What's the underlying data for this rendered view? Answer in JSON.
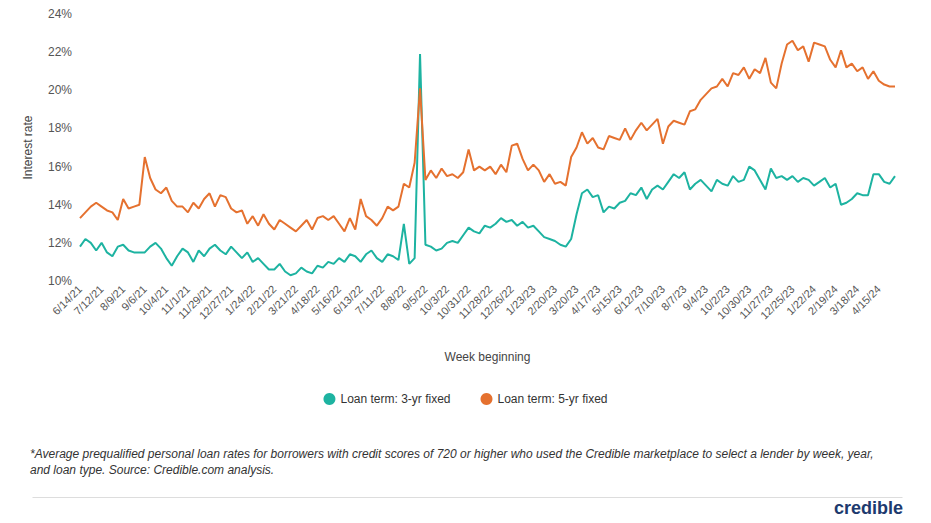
{
  "chart_data": {
    "type": "line",
    "x_label": "Week beginning",
    "y_label": "Interest rate",
    "note": "*Average prequalified personal loan rates for borrowers with credit scores of 720 or higher who used the Credible marketplace to select a lender by week, year, and loan type. Source: Credible.com analysis.",
    "logo": "credible",
    "categories": [
      "6/14/21",
      null,
      null,
      null,
      "7/12/21",
      null,
      null,
      null,
      "8/9/21",
      null,
      null,
      null,
      "9/6/21",
      null,
      null,
      null,
      "10/4/21",
      null,
      null,
      null,
      "11/1/21",
      null,
      null,
      null,
      "11/29/21",
      null,
      null,
      null,
      "12/27/21",
      null,
      null,
      null,
      "1/24/22",
      null,
      null,
      null,
      "2/21/22",
      null,
      null,
      null,
      "3/21/22",
      null,
      null,
      null,
      "4/18/22",
      null,
      null,
      null,
      "5/16/22",
      null,
      null,
      null,
      "6/13/22",
      null,
      null,
      null,
      "7/11/22",
      null,
      null,
      null,
      "8/8/22",
      null,
      null,
      null,
      "9/5/22",
      null,
      null,
      null,
      "10/3/22",
      null,
      null,
      null,
      "10/31/22",
      null,
      null,
      null,
      "11/28/22",
      null,
      null,
      null,
      "12/26/22",
      null,
      null,
      null,
      "1/23/23",
      null,
      null,
      null,
      "2/20/23",
      null,
      null,
      null,
      "3/20/23",
      null,
      null,
      null,
      "4/17/23",
      null,
      null,
      null,
      "5/15/23",
      null,
      null,
      null,
      "6/12/23",
      null,
      null,
      null,
      "7/10/23",
      null,
      null,
      null,
      "8/7/23",
      null,
      null,
      null,
      "9/4/23",
      null,
      null,
      null,
      "10/2/23",
      null,
      null,
      null,
      "10/30/23",
      null,
      null,
      null,
      "11/27/23",
      null,
      null,
      null,
      "12/25/23",
      null,
      null,
      null,
      "1/22/24",
      null,
      null,
      null,
      "2/19/24",
      null,
      null,
      null,
      "3/18/24",
      null,
      null,
      null,
      "4/15/24",
      null,
      null,
      null
    ],
    "series": [
      {
        "name": "Loan term: 3-yr fixed",
        "color": "#1db3a1",
        "values": [
          11.8,
          12.2,
          12.0,
          11.6,
          12.0,
          11.5,
          11.3,
          11.8,
          11.9,
          11.6,
          11.5,
          11.5,
          11.5,
          11.8,
          12.0,
          11.7,
          11.2,
          10.8,
          11.3,
          11.7,
          11.5,
          11.0,
          11.6,
          11.3,
          11.7,
          11.9,
          11.6,
          11.4,
          11.8,
          11.5,
          11.2,
          11.5,
          11.0,
          11.2,
          10.9,
          10.6,
          10.6,
          10.9,
          10.5,
          10.3,
          10.4,
          10.7,
          10.5,
          10.4,
          10.8,
          10.7,
          11.0,
          10.9,
          11.2,
          11.0,
          11.4,
          11.3,
          11.0,
          11.4,
          11.6,
          11.2,
          11.0,
          11.4,
          11.3,
          11.1,
          13.0,
          10.9,
          11.2,
          21.9,
          11.9,
          11.8,
          11.6,
          11.7,
          12.0,
          12.1,
          12.0,
          12.4,
          12.8,
          12.6,
          12.5,
          12.9,
          12.8,
          13.0,
          13.3,
          13.1,
          13.2,
          12.9,
          13.1,
          12.8,
          12.9,
          12.6,
          12.3,
          12.2,
          12.1,
          11.9,
          11.8,
          12.2,
          13.5,
          14.6,
          14.8,
          14.4,
          14.5,
          13.6,
          13.9,
          13.8,
          14.1,
          14.2,
          14.6,
          14.5,
          14.9,
          14.3,
          14.8,
          15.0,
          14.8,
          15.2,
          15.6,
          15.4,
          15.7,
          14.8,
          15.1,
          15.3,
          15.0,
          14.7,
          15.3,
          15.1,
          15.0,
          15.5,
          15.2,
          15.3,
          16.0,
          15.8,
          15.3,
          14.8,
          15.9,
          15.4,
          15.5,
          15.3,
          15.5,
          15.2,
          15.4,
          15.3,
          15.0,
          15.2,
          15.4,
          14.9,
          15.1,
          14.0,
          14.1,
          14.3,
          14.6,
          14.5,
          14.5,
          15.6,
          15.6,
          15.2,
          15.1,
          15.5
        ]
      },
      {
        "name": "Loan term: 5-yr fixed",
        "color": "#e5712f",
        "values": [
          13.3,
          13.6,
          13.9,
          14.1,
          13.9,
          13.7,
          13.6,
          13.2,
          14.3,
          13.8,
          13.9,
          14.0,
          16.5,
          15.4,
          14.8,
          14.6,
          14.9,
          14.2,
          13.9,
          13.9,
          13.6,
          14.1,
          13.8,
          14.3,
          14.6,
          13.9,
          14.5,
          14.4,
          13.8,
          13.6,
          13.7,
          13.0,
          13.4,
          12.9,
          13.5,
          13.0,
          12.7,
          13.2,
          13.0,
          12.8,
          12.6,
          12.9,
          13.2,
          12.7,
          13.3,
          13.4,
          13.2,
          13.4,
          13.0,
          12.6,
          13.3,
          12.7,
          14.3,
          13.4,
          13.2,
          12.9,
          13.3,
          13.9,
          13.7,
          13.9,
          15.1,
          14.9,
          16.2,
          20.1,
          15.3,
          15.8,
          15.4,
          15.9,
          15.5,
          15.6,
          15.4,
          15.7,
          16.9,
          15.8,
          16.0,
          15.8,
          16.0,
          15.6,
          16.1,
          15.7,
          17.1,
          17.2,
          16.4,
          15.8,
          16.1,
          15.8,
          15.2,
          15.6,
          15.1,
          15.2,
          15.0,
          16.5,
          17.0,
          17.8,
          17.2,
          17.5,
          17.0,
          16.9,
          17.6,
          17.5,
          17.4,
          18.0,
          17.4,
          17.9,
          18.3,
          17.9,
          18.2,
          18.5,
          17.2,
          18.1,
          18.4,
          18.3,
          18.2,
          18.9,
          19.0,
          19.5,
          19.8,
          20.1,
          20.2,
          20.6,
          20.2,
          20.9,
          20.8,
          21.2,
          20.6,
          21.1,
          20.9,
          21.7,
          20.4,
          20.1,
          21.4,
          22.4,
          22.6,
          22.1,
          22.3,
          21.5,
          22.5,
          22.4,
          22.3,
          21.6,
          21.2,
          22.1,
          21.2,
          21.4,
          21.0,
          21.2,
          20.6,
          21.0,
          20.5,
          20.3,
          20.2,
          20.2
        ]
      }
    ],
    "ylim": [
      10,
      24
    ],
    "yticks": [
      {
        "value": 10,
        "label": "10%"
      },
      {
        "value": 12,
        "label": "12%"
      },
      {
        "value": 14,
        "label": "14%"
      },
      {
        "value": 16,
        "label": "16%"
      },
      {
        "value": 18,
        "label": "18%"
      },
      {
        "value": 20,
        "label": "20%"
      },
      {
        "value": 22,
        "label": "22%"
      },
      {
        "value": 24,
        "label": "24%"
      }
    ],
    "grid": false,
    "legend": "bottom"
  }
}
